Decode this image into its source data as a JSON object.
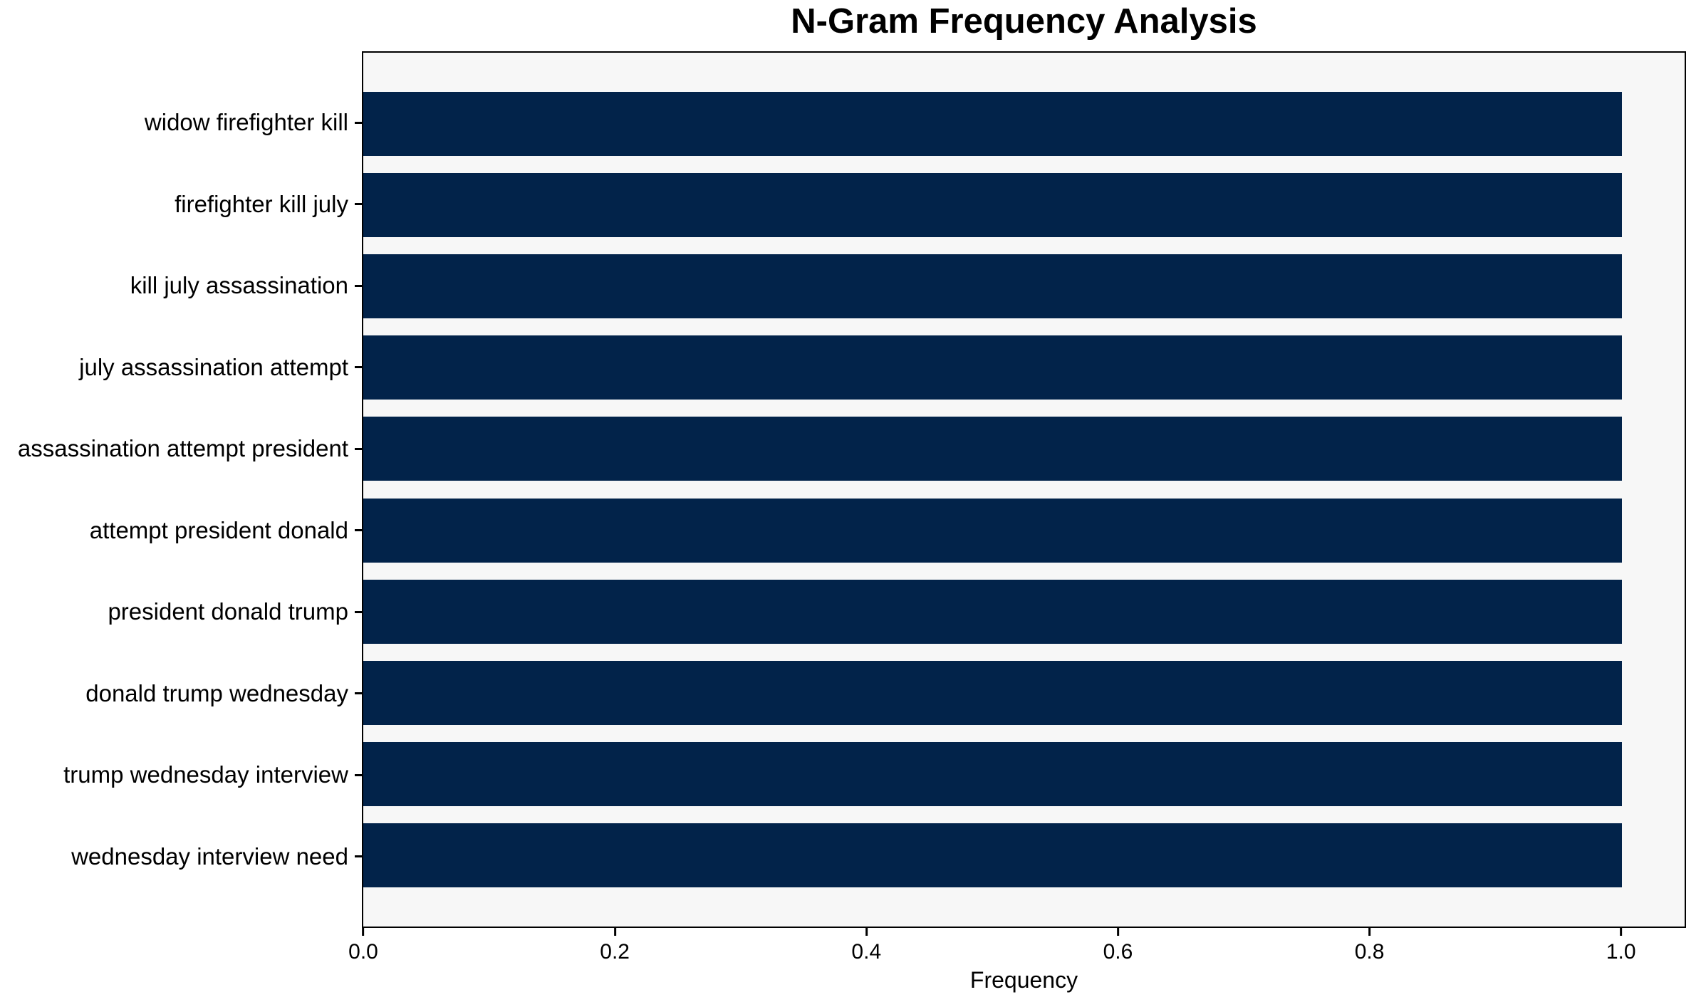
{
  "chart_data": {
    "type": "bar",
    "orientation": "horizontal",
    "title": "N-Gram Frequency Analysis",
    "xlabel": "Frequency",
    "ylabel": "",
    "categories": [
      "widow firefighter kill",
      "firefighter kill july",
      "kill july assassination",
      "july assassination attempt",
      "assassination attempt president",
      "attempt president donald",
      "president donald trump",
      "donald trump wednesday",
      "trump wednesday interview",
      "wednesday interview need"
    ],
    "values": [
      1.0,
      1.0,
      1.0,
      1.0,
      1.0,
      1.0,
      1.0,
      1.0,
      1.0,
      1.0
    ],
    "xlim": [
      0,
      1.05
    ],
    "x_ticks": [
      {
        "value": 0.0,
        "label": "0.0"
      },
      {
        "value": 0.2,
        "label": "0.2"
      },
      {
        "value": 0.4,
        "label": "0.4"
      },
      {
        "value": 0.6,
        "label": "0.6"
      },
      {
        "value": 0.8,
        "label": "0.8"
      },
      {
        "value": 1.0,
        "label": "1.0"
      }
    ],
    "grid": false,
    "legend": null,
    "colors": {
      "bar": "#02234a",
      "plot_background": "#f7f7f7",
      "figure_background": "#ffffff",
      "axis_line": "#000000",
      "text": "#000000"
    }
  }
}
